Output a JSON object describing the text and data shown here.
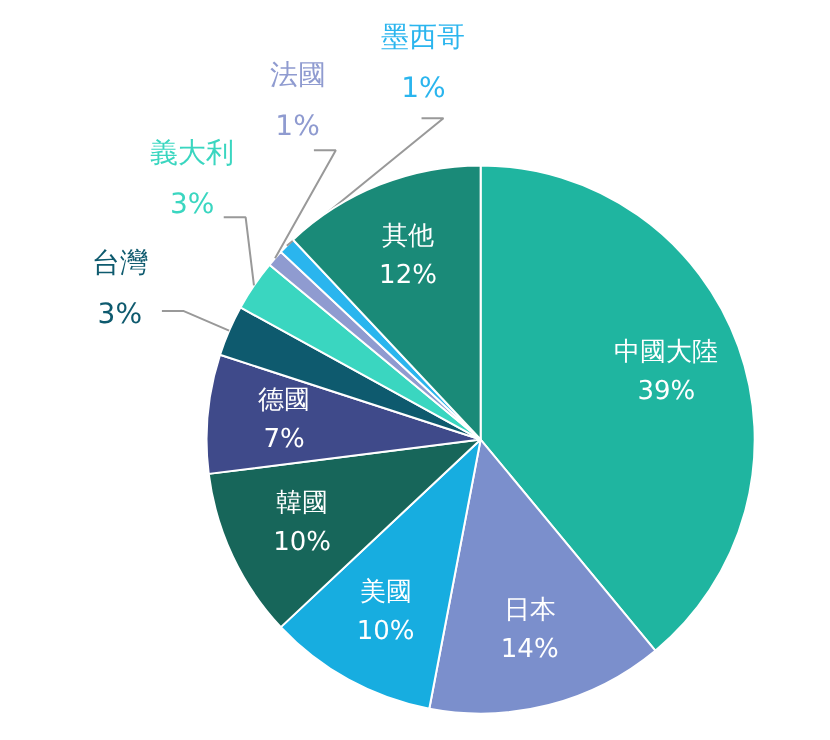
{
  "chart_data": {
    "type": "pie",
    "categories": [
      "中國大陸",
      "日本",
      "美國",
      "韓國",
      "德國",
      "台灣",
      "義大利",
      "法國",
      "墨西哥",
      "其他"
    ],
    "values": [
      39,
      14,
      10,
      10,
      7,
      3,
      3,
      1,
      1,
      12
    ],
    "colors": [
      "#1fb5a0",
      "#7b8fcc",
      "#17ade0",
      "#17665a",
      "#3f4a8a",
      "#0e5a6e",
      "#3ad6c0",
      "#8f9bd0",
      "#2ab5ee",
      "#1a8a78"
    ],
    "value_labels": [
      "39%",
      "14%",
      "10%",
      "10%",
      "7%",
      "3%",
      "3%",
      "1%",
      "1%",
      "12%"
    ]
  }
}
